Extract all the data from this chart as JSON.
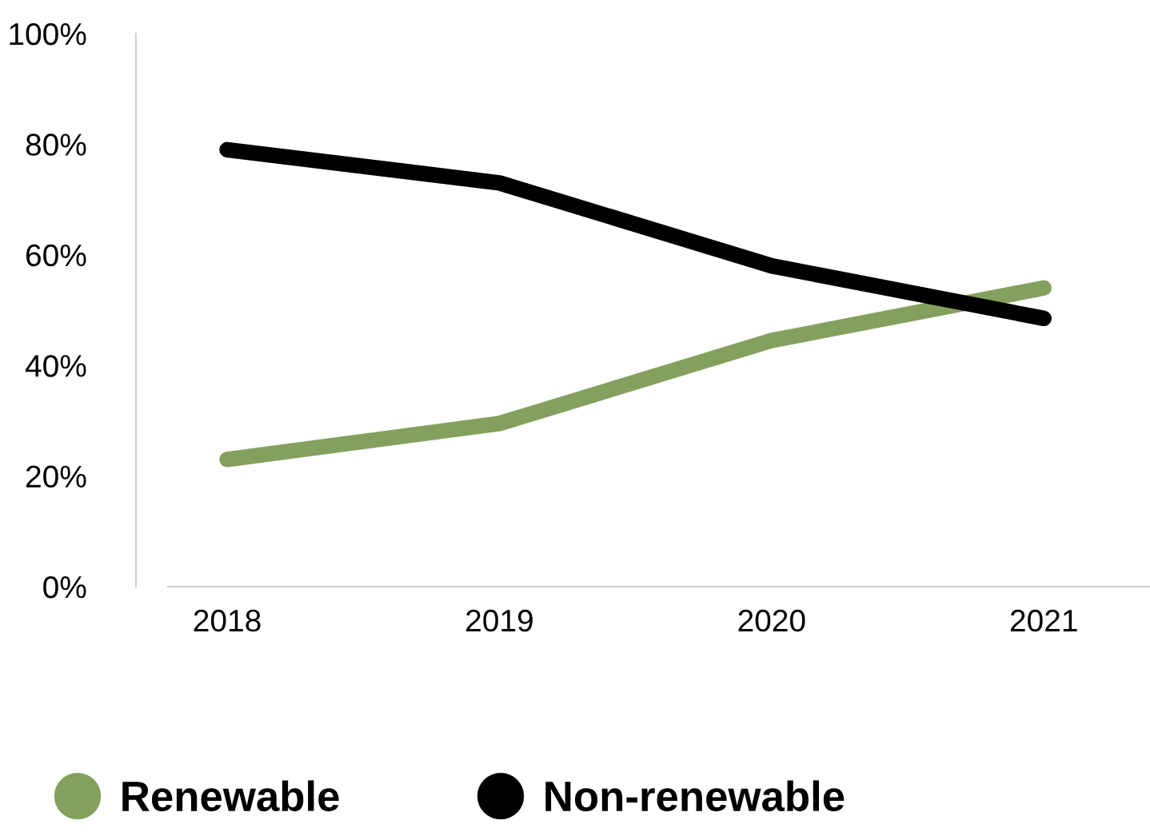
{
  "chart_data": {
    "type": "line",
    "categories": [
      "2018",
      "2019",
      "2020",
      "2021"
    ],
    "series": [
      {
        "name": "Renewable",
        "color": "#84a05e",
        "values": [
          23,
          29.5,
          44.5,
          54
        ]
      },
      {
        "name": "Non-renewable",
        "color": "#000000",
        "values": [
          79,
          73,
          58,
          48.5
        ]
      }
    ],
    "ylim": [
      0,
      100
    ],
    "yticks": [
      {
        "value": 0,
        "label": "0%"
      },
      {
        "value": 20,
        "label": "20%"
      },
      {
        "value": 40,
        "label": "40%"
      },
      {
        "value": 60,
        "label": "60%"
      },
      {
        "value": 80,
        "label": "80%"
      },
      {
        "value": 100,
        "label": "100%"
      }
    ],
    "grid": false,
    "legend": "bottom",
    "marker": "none",
    "line_style": "solid"
  }
}
